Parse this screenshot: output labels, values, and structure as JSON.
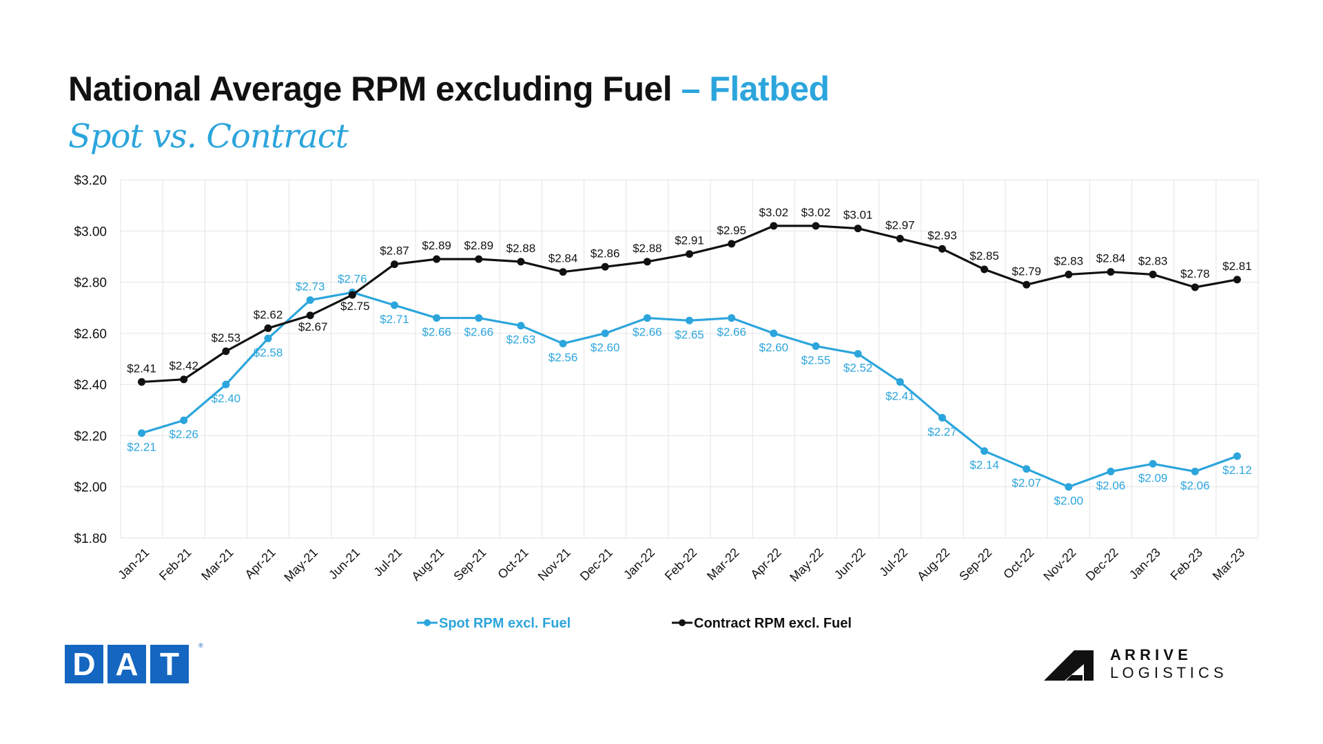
{
  "header": {
    "title_main": "National Average RPM excluding Fuel",
    "title_accent": "– Flatbed",
    "subtitle": "Spot vs. Contract"
  },
  "colors": {
    "spot": "#2ca5dc",
    "contract": "#111111",
    "grid": "#e3e3e3",
    "dat_blue": "#1466c0"
  },
  "legend": {
    "spot_label": "Spot RPM excl. Fuel",
    "contract_label": "Contract RPM excl. Fuel"
  },
  "logos": {
    "dat_letters": [
      "D",
      "A",
      "T"
    ],
    "dat_mark": "®",
    "arrive_line1": "A R R I V E",
    "arrive_line2": "L O G I S T I C S"
  },
  "chart_data": {
    "type": "line",
    "categories": [
      "Jan-21",
      "Feb-21",
      "Mar-21",
      "Apr-21",
      "May-21",
      "Jun-21",
      "Jul-21",
      "Aug-21",
      "Sep-21",
      "Oct-21",
      "Nov-21",
      "Dec-21",
      "Jan-22",
      "Feb-22",
      "Mar-22",
      "Apr-22",
      "May-22",
      "Jun-22",
      "Jul-22",
      "Aug-22",
      "Sep-22",
      "Oct-22",
      "Nov-22",
      "Dec-22",
      "Jan-23",
      "Feb-23",
      "Mar-23"
    ],
    "series": [
      {
        "name": "Spot RPM excl. Fuel",
        "values": [
          2.21,
          2.26,
          2.4,
          2.58,
          2.73,
          2.76,
          2.71,
          2.66,
          2.66,
          2.63,
          2.56,
          2.6,
          2.66,
          2.65,
          2.66,
          2.6,
          2.55,
          2.52,
          2.41,
          2.27,
          2.14,
          2.07,
          2.0,
          2.06,
          2.09,
          2.06,
          2.12
        ]
      },
      {
        "name": "Contract RPM excl. Fuel",
        "values": [
          2.41,
          2.42,
          2.53,
          2.62,
          2.67,
          2.75,
          2.87,
          2.89,
          2.89,
          2.88,
          2.84,
          2.86,
          2.88,
          2.91,
          2.95,
          3.02,
          3.02,
          3.01,
          2.97,
          2.93,
          2.85,
          2.79,
          2.83,
          2.84,
          2.83,
          2.78,
          2.81
        ]
      }
    ],
    "ylim": [
      1.8,
      3.2
    ],
    "yticks": [
      1.8,
      2.0,
      2.2,
      2.4,
      2.6,
      2.8,
      3.0,
      3.2
    ],
    "ytick_labels": [
      "$1.80",
      "$2.00",
      "$2.20",
      "$2.40",
      "$2.60",
      "$2.80",
      "$3.00",
      "$3.20"
    ],
    "grid": true,
    "legend_position": "bottom-center",
    "data_labels": true
  }
}
